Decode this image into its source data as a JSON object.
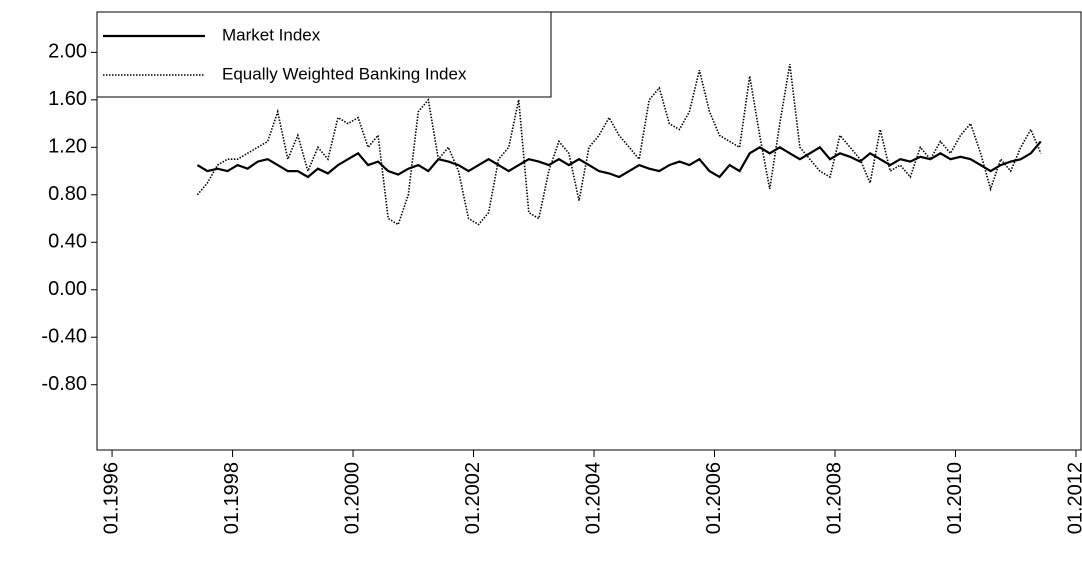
{
  "chart_data": {
    "type": "line",
    "x": [
      "1997-06",
      "1997-08",
      "1997-10",
      "1997-12",
      "1998-02",
      "1998-04",
      "1998-06",
      "1998-08",
      "1998-10",
      "1998-12",
      "1999-02",
      "1999-04",
      "1999-06",
      "1999-08",
      "1999-10",
      "1999-12",
      "2000-02",
      "2000-04",
      "2000-06",
      "2000-08",
      "2000-10",
      "2000-12",
      "2001-02",
      "2001-04",
      "2001-06",
      "2001-08",
      "2001-10",
      "2001-12",
      "2002-02",
      "2002-04",
      "2002-06",
      "2002-08",
      "2002-10",
      "2002-12",
      "2003-02",
      "2003-04",
      "2003-06",
      "2003-08",
      "2003-10",
      "2003-12",
      "2004-02",
      "2004-04",
      "2004-06",
      "2004-08",
      "2004-10",
      "2004-12",
      "2005-02",
      "2005-04",
      "2005-06",
      "2005-08",
      "2005-10",
      "2005-12",
      "2006-02",
      "2006-04",
      "2006-06",
      "2006-08",
      "2006-10",
      "2006-12",
      "2007-02",
      "2007-04",
      "2007-06",
      "2007-08",
      "2007-10",
      "2007-12",
      "2008-02",
      "2008-04",
      "2008-06",
      "2008-08",
      "2008-10",
      "2008-12",
      "2009-02",
      "2009-04",
      "2009-06",
      "2009-08",
      "2009-10",
      "2009-12",
      "2010-02",
      "2010-04",
      "2010-06",
      "2010-08",
      "2010-10",
      "2010-12",
      "2011-02",
      "2011-04",
      "2011-06"
    ],
    "series": [
      {
        "name": "Market Index",
        "color": "#000000",
        "style": "solid",
        "values": [
          1.05,
          1.0,
          1.02,
          1.0,
          1.05,
          1.02,
          1.08,
          1.1,
          1.05,
          1.0,
          1.0,
          0.95,
          1.02,
          0.98,
          1.05,
          1.1,
          1.15,
          1.05,
          1.08,
          1.0,
          0.97,
          1.02,
          1.05,
          1.0,
          1.1,
          1.08,
          1.05,
          1.0,
          1.05,
          1.1,
          1.05,
          1.0,
          1.05,
          1.1,
          1.08,
          1.05,
          1.1,
          1.05,
          1.1,
          1.05,
          1.0,
          0.98,
          0.95,
          1.0,
          1.05,
          1.02,
          1.0,
          1.05,
          1.08,
          1.05,
          1.1,
          1.0,
          0.95,
          1.05,
          1.0,
          1.15,
          1.2,
          1.15,
          1.2,
          1.15,
          1.1,
          1.15,
          1.2,
          1.1,
          1.15,
          1.12,
          1.08,
          1.15,
          1.1,
          1.05,
          1.1,
          1.08,
          1.12,
          1.1,
          1.15,
          1.1,
          1.12,
          1.1,
          1.05,
          1.0,
          1.05,
          1.08,
          1.1,
          1.15,
          1.25
        ]
      },
      {
        "name": "Equally Weighted Banking Index",
        "color": "#000000",
        "style": "dotted",
        "values": [
          0.8,
          0.9,
          1.05,
          1.1,
          1.1,
          1.15,
          1.2,
          1.25,
          1.5,
          1.1,
          1.3,
          1.0,
          1.2,
          1.1,
          1.45,
          1.4,
          1.45,
          1.2,
          1.3,
          0.6,
          0.55,
          0.8,
          1.5,
          1.6,
          1.1,
          1.2,
          1.0,
          0.6,
          0.55,
          0.65,
          1.1,
          1.2,
          1.6,
          0.65,
          0.6,
          1.0,
          1.25,
          1.15,
          0.75,
          1.2,
          1.3,
          1.45,
          1.3,
          1.2,
          1.1,
          1.6,
          1.7,
          1.4,
          1.35,
          1.5,
          1.85,
          1.5,
          1.3,
          1.25,
          1.2,
          1.8,
          1.3,
          0.85,
          1.4,
          1.9,
          1.2,
          1.1,
          1.0,
          0.95,
          1.3,
          1.2,
          1.1,
          0.9,
          1.35,
          1.0,
          1.05,
          0.95,
          1.2,
          1.1,
          1.25,
          1.15,
          1.3,
          1.4,
          1.15,
          0.85,
          1.1,
          1.0,
          1.2,
          1.35,
          1.15
        ]
      }
    ],
    "xlim": [
      "1995-10",
      "2012-02"
    ],
    "xticks": [
      {
        "value": "1996-01",
        "label": "01.1996"
      },
      {
        "value": "1998-01",
        "label": "01.1998"
      },
      {
        "value": "2000-01",
        "label": "01.2000"
      },
      {
        "value": "2002-01",
        "label": "01.2002"
      },
      {
        "value": "2004-01",
        "label": "01.2004"
      },
      {
        "value": "2006-01",
        "label": "01.2006"
      },
      {
        "value": "2008-01",
        "label": "01.2008"
      },
      {
        "value": "2010-01",
        "label": "01.2010"
      },
      {
        "value": "2012-01",
        "label": "01.2012"
      }
    ],
    "ylim": [
      -1.35,
      2.34
    ],
    "yticks": [
      {
        "value": -0.8,
        "label": "-0.80"
      },
      {
        "value": -0.4,
        "label": "-0.40"
      },
      {
        "value": 0,
        "label": "0.00"
      },
      {
        "value": 0.4,
        "label": "0.40"
      },
      {
        "value": 0.8,
        "label": "0.80"
      },
      {
        "value": 1.2,
        "label": "1.20"
      },
      {
        "value": 1.6,
        "label": "1.60"
      },
      {
        "value": 2,
        "label": "2.00"
      }
    ],
    "legend": "top-left"
  }
}
